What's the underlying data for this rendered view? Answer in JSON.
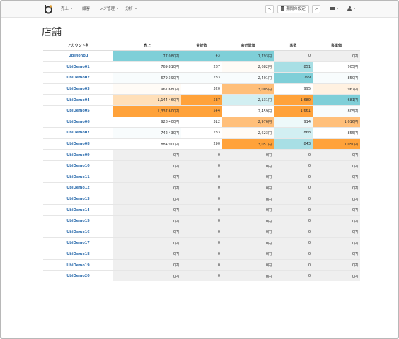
{
  "nav": {
    "menu": [
      {
        "label": "売上",
        "caret": true
      },
      {
        "label": "顧客",
        "caret": false
      },
      {
        "label": "レジ管理",
        "caret": true
      },
      {
        "label": "分析",
        "caret": true
      }
    ],
    "prev_label": "<",
    "period_label": "期間の設定",
    "next_label": ">"
  },
  "page": {
    "title": "店舗"
  },
  "table": {
    "headers": [
      "アカウント名",
      "売上",
      "会計数",
      "会計単価",
      "客数",
      "客単価"
    ],
    "rows": [
      {
        "name": "UbiHonbu",
        "cells": [
          "77,080円",
          "43",
          "1,793円",
          "0",
          "0円"
        ],
        "shade": [
          "t1",
          "t1",
          "t1",
          "z",
          "z"
        ]
      },
      {
        "name": "UbiDemo01",
        "cells": [
          "769,810円",
          "287",
          "2,682円",
          "851",
          "905円"
        ],
        "shade": [
          "w",
          "w",
          "o5",
          "t2",
          "w"
        ]
      },
      {
        "name": "UbiDemo02",
        "cells": [
          "679,390円",
          "283",
          "2,401円",
          "799",
          "850円"
        ],
        "shade": [
          "t5",
          "t5",
          "t5",
          "t1",
          "t5"
        ]
      },
      {
        "name": "UbiDemo03",
        "cells": [
          "961,680円",
          "320",
          "3,005円",
          "995",
          "967円"
        ],
        "shade": [
          "o5",
          "w",
          "o2",
          "w",
          "o4"
        ]
      },
      {
        "name": "UbiDemo04",
        "cells": [
          "1,144,460円",
          "537",
          "2,131円",
          "1,680",
          "681円"
        ],
        "shade": [
          "o3",
          "o1",
          "t3",
          "o1",
          "t1"
        ]
      },
      {
        "name": "UbiDemo05",
        "cells": [
          "1,337,600円",
          "544",
          "2,459円",
          "1,661",
          "805円"
        ],
        "shade": [
          "o1",
          "o1",
          "w",
          "o1",
          "t5"
        ]
      },
      {
        "name": "UbiDemo06",
        "cells": [
          "928,400円",
          "312",
          "2,976円",
          "914",
          "1,016円"
        ],
        "shade": [
          "w",
          "w",
          "o2",
          "t4",
          "o2"
        ]
      },
      {
        "name": "UbiDemo07",
        "cells": [
          "742,430円",
          "283",
          "2,623円",
          "868",
          "855円"
        ],
        "shade": [
          "t5",
          "w",
          "o5",
          "t3",
          "w"
        ]
      },
      {
        "name": "UbiDemo08",
        "cells": [
          "884,900円",
          "290",
          "3,051円",
          "843",
          "1,050円"
        ],
        "shade": [
          "w",
          "w",
          "o1",
          "t2",
          "o1"
        ]
      },
      {
        "name": "UbiDemo09",
        "cells": [
          "0円",
          "0",
          "0円",
          "0",
          "0円"
        ],
        "shade": [
          "z",
          "z",
          "z",
          "z",
          "z"
        ]
      },
      {
        "name": "UbiDemo10",
        "cells": [
          "0円",
          "0",
          "0円",
          "0",
          "0円"
        ],
        "shade": [
          "z",
          "z",
          "z",
          "z",
          "z"
        ]
      },
      {
        "name": "UbiDemo11",
        "cells": [
          "0円",
          "0",
          "0円",
          "0",
          "0円"
        ],
        "shade": [
          "z",
          "z",
          "z",
          "z",
          "z"
        ]
      },
      {
        "name": "UbiDemo12",
        "cells": [
          "0円",
          "0",
          "0円",
          "0",
          "0円"
        ],
        "shade": [
          "z",
          "z",
          "z",
          "z",
          "z"
        ]
      },
      {
        "name": "UbiDemo13",
        "cells": [
          "0円",
          "0",
          "0円",
          "0",
          "0円"
        ],
        "shade": [
          "z",
          "z",
          "z",
          "z",
          "z"
        ]
      },
      {
        "name": "UbiDemo14",
        "cells": [
          "0円",
          "0",
          "0円",
          "0",
          "0円"
        ],
        "shade": [
          "z",
          "z",
          "z",
          "z",
          "z"
        ]
      },
      {
        "name": "UbiDemo15",
        "cells": [
          "0円",
          "0",
          "0円",
          "0",
          "0円"
        ],
        "shade": [
          "z",
          "z",
          "z",
          "z",
          "z"
        ]
      },
      {
        "name": "UbiDemo16",
        "cells": [
          "0円",
          "0",
          "0円",
          "0",
          "0円"
        ],
        "shade": [
          "z",
          "z",
          "z",
          "z",
          "z"
        ]
      },
      {
        "name": "UbiDemo17",
        "cells": [
          "0円",
          "0",
          "0円",
          "0",
          "0円"
        ],
        "shade": [
          "z",
          "z",
          "z",
          "z",
          "z"
        ]
      },
      {
        "name": "UbiDemo18",
        "cells": [
          "0円",
          "0",
          "0円",
          "0",
          "0円"
        ],
        "shade": [
          "z",
          "z",
          "z",
          "z",
          "z"
        ]
      },
      {
        "name": "UbiDemo19",
        "cells": [
          "0円",
          "0",
          "0円",
          "0",
          "0円"
        ],
        "shade": [
          "z",
          "z",
          "z",
          "z",
          "z"
        ]
      },
      {
        "name": "UbiDemo20",
        "cells": [
          "0円",
          "0",
          "0円",
          "0",
          "0円"
        ],
        "shade": [
          "z",
          "z",
          "z",
          "z",
          "z"
        ]
      }
    ]
  },
  "colors": {
    "link": "#3572b0",
    "teal_high": "#7fcfd8",
    "orange_high": "#ffa23a",
    "zero_gray": "#efefef"
  }
}
